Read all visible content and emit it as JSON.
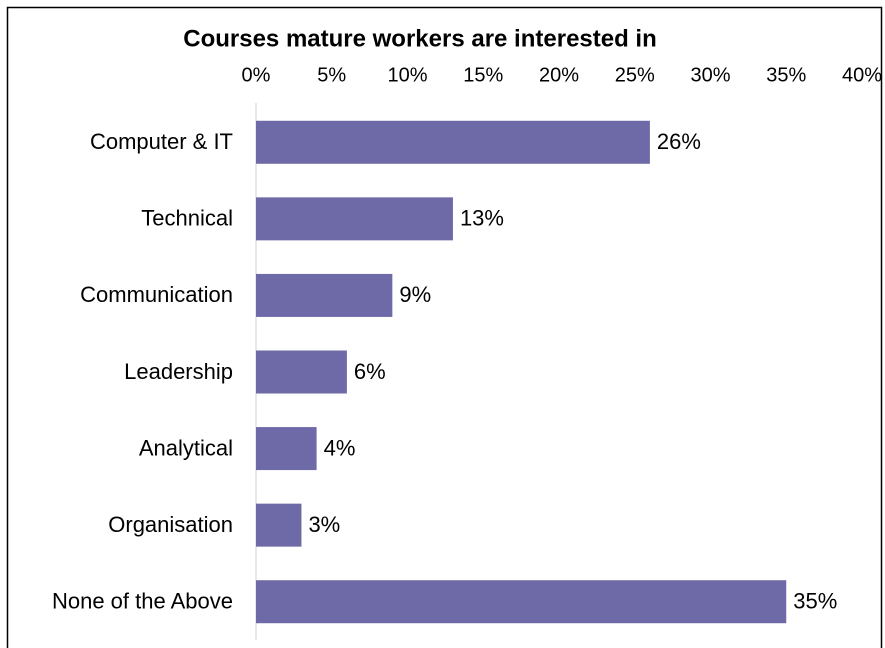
{
  "chart_data": {
    "type": "bar",
    "orientation": "horizontal",
    "title": "Courses mature workers are interested in",
    "categories": [
      "Computer & IT",
      "Technical",
      "Communication",
      "Leadership",
      "Analytical",
      "Organisation",
      "None of the Above"
    ],
    "values": [
      26,
      13,
      9,
      6,
      4,
      3,
      35
    ],
    "value_labels": [
      "26%",
      "13%",
      "9%",
      "6%",
      "4%",
      "3%",
      "35%"
    ],
    "color": "#6e6aa7",
    "xlim": [
      0,
      40
    ],
    "xticks": [
      {
        "value": 0,
        "label": "0%"
      },
      {
        "value": 5,
        "label": "5%"
      },
      {
        "value": 10,
        "label": "10%"
      },
      {
        "value": 15,
        "label": "15%"
      },
      {
        "value": 20,
        "label": "20%"
      },
      {
        "value": 25,
        "label": "25%"
      },
      {
        "value": 30,
        "label": "30%"
      },
      {
        "value": 35,
        "label": "35%"
      },
      {
        "value": 40,
        "label": "40%"
      }
    ],
    "grid": false
  }
}
